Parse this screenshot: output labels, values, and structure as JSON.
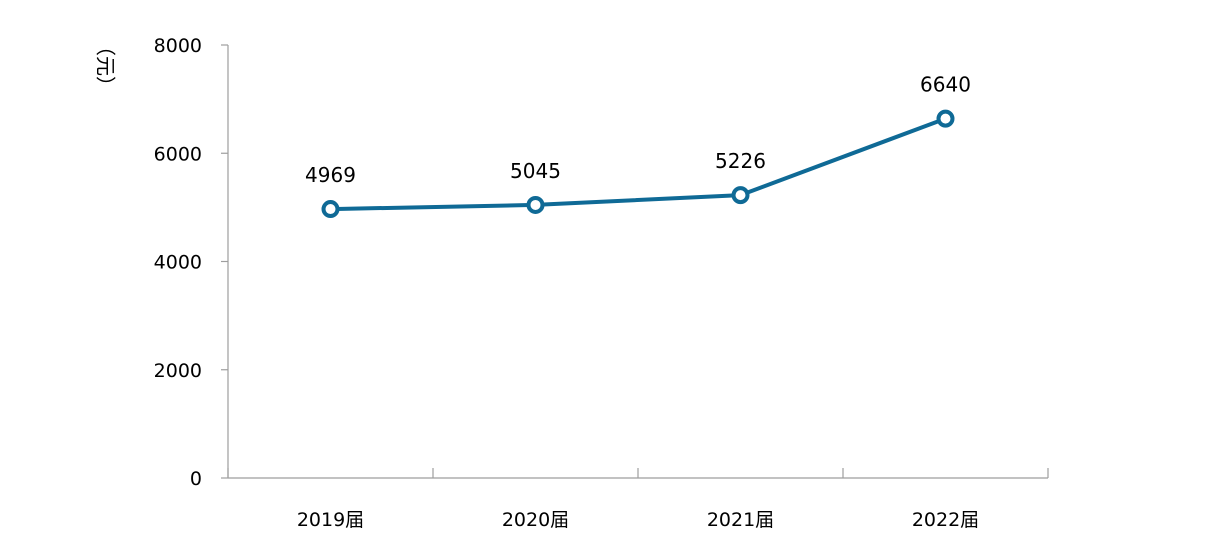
{
  "chart_data": {
    "type": "line",
    "categories": [
      "2019届",
      "2020届",
      "2021届",
      "2022届"
    ],
    "series": [
      {
        "values": [
          4969,
          5045,
          5226,
          6640
        ]
      }
    ],
    "data_labels": [
      "4969",
      "5045",
      "5226",
      "6640"
    ],
    "ylabel": "（元）",
    "ylim": [
      0,
      8000
    ],
    "yticks": [
      "0",
      "2000",
      "4000",
      "6000",
      "8000"
    ],
    "grid": false,
    "legend": "none",
    "line_color": "#0F6A96",
    "axis_color": "#9E9E9E"
  }
}
